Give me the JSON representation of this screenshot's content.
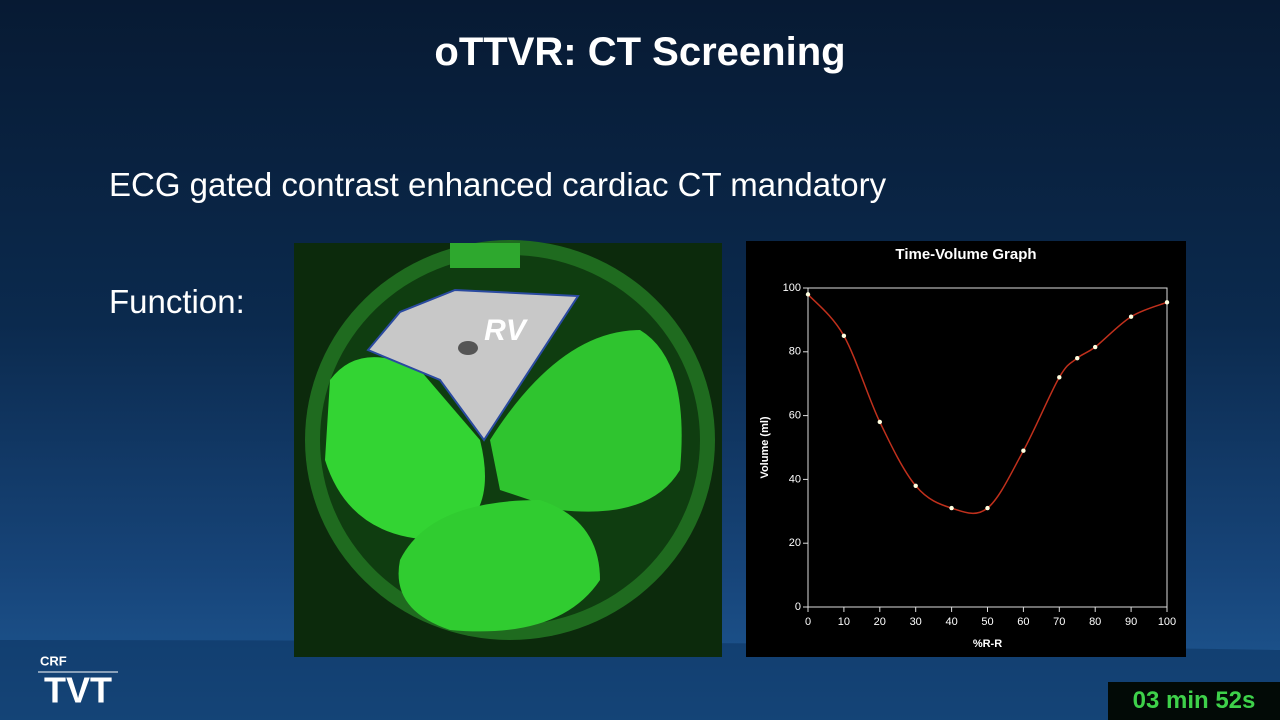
{
  "header": {
    "title": "oTTVR: CT Screening"
  },
  "bullets": [
    "ECG gated contrast enhanced cardiac CT mandatory",
    "Function:"
  ],
  "image": {
    "label": "RV"
  },
  "chart_data": {
    "type": "line",
    "title": "Time-Volume Graph",
    "x_label": "%R-R",
    "y_label": "Volume (ml)",
    "x": [
      0,
      10,
      20,
      30,
      40,
      50,
      60,
      70,
      75,
      80,
      90,
      100
    ],
    "series": [
      {
        "name": "Volume",
        "color": "#c0301c",
        "values": [
          98,
          85,
          58,
          38,
          31,
          31,
          49,
          72,
          78,
          81.5,
          91,
          95.5
        ]
      }
    ],
    "xlim": [
      0,
      100
    ],
    "xticks": [
      0,
      10,
      20,
      30,
      40,
      50,
      60,
      70,
      80,
      90,
      100
    ],
    "ylim": [
      0,
      100
    ],
    "yticks": [
      0,
      20,
      40,
      60,
      80,
      100
    ],
    "marker_color": "#ffffe0"
  },
  "footer": {
    "logo_top": "CRF",
    "logo_main": "TVT",
    "timer": "03 min 52s"
  }
}
